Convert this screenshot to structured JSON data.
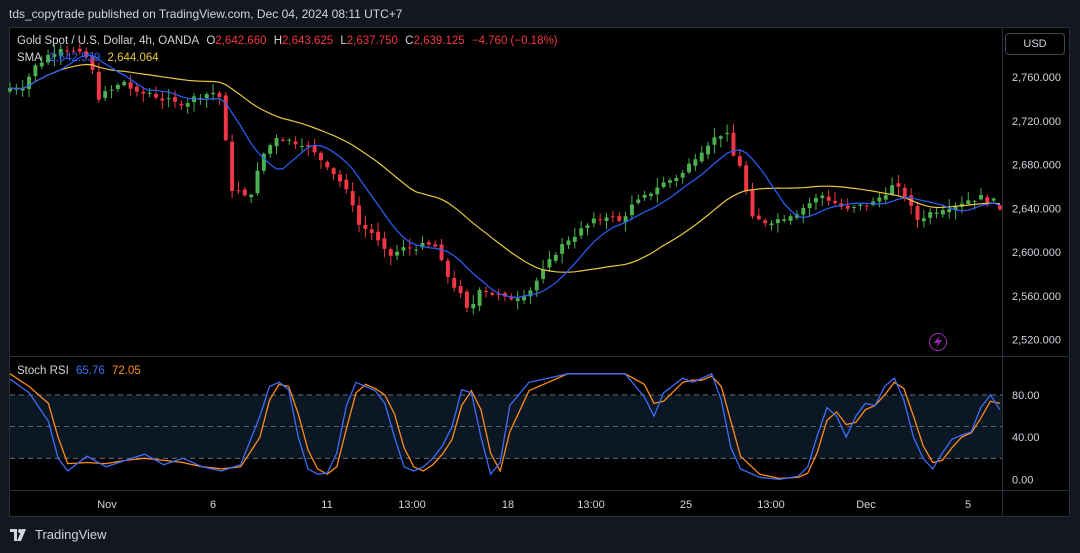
{
  "header": {
    "publisher": "tds_copytrade published on TradingView.com, Dec 04, 2024 08:11 UTC+7"
  },
  "footer": {
    "brand": "TradingView"
  },
  "currency_button": "USD",
  "legend": {
    "symbol": "Gold Spot / U.S. Dollar, 4h, OANDA",
    "o_label": "O",
    "o_value": "2,642.660",
    "h_label": "H",
    "h_value": "2,643.625",
    "l_label": "L",
    "l_value": "2,637.750",
    "c_label": "C",
    "c_value": "2,639.125",
    "change": "−4.760 (−0.18%)",
    "sma_label": "SMA",
    "sma_fast": "2,642.539",
    "sma_slow": "2,644.064",
    "rsi_label": "Stoch RSI",
    "rsi_k": "65.76",
    "rsi_d": "72.05"
  },
  "colors": {
    "up": "#4caf50",
    "down": "#f23645",
    "sma_fast": "#2962ff",
    "sma_slow": "#e8c840",
    "rsi_k": "#3d6dfa",
    "rsi_d": "#ff8c1a",
    "lightning": "#9c27b0"
  },
  "icons": {
    "lightning": "lightning-bolt-icon"
  },
  "chart_data": [
    {
      "type": "candlestick",
      "title": "Gold Spot / U.S. Dollar, 4h, OANDA",
      "ylim": [
        2505,
        2805
      ],
      "y_ticks": [
        2520,
        2560,
        2600,
        2640,
        2680,
        2720,
        2760
      ],
      "y_tick_labels": [
        "2,520.000",
        "2,560.000",
        "2,600.000",
        "2,640.000",
        "2,680.000",
        "2,720.000",
        "2,760.000"
      ],
      "x_tick_labels": [
        "Nov",
        "6",
        "11",
        "13:00",
        "18",
        "13:00",
        "25",
        "13:00",
        "Dec",
        "5"
      ],
      "sma_fast_value": 2642.539,
      "sma_slow_value": 2644.064,
      "close_points": [
        [
          0,
          2750
        ],
        [
          2,
          2752
        ],
        [
          4,
          2770
        ],
        [
          6,
          2780
        ],
        [
          8,
          2788
        ],
        [
          10,
          2783
        ],
        [
          12,
          2778
        ],
        [
          13,
          2765
        ],
        [
          14,
          2742
        ],
        [
          16,
          2748
        ],
        [
          18,
          2756
        ],
        [
          20,
          2744
        ],
        [
          22,
          2746
        ],
        [
          24,
          2740
        ],
        [
          26,
          2736
        ],
        [
          28,
          2738
        ],
        [
          30,
          2744
        ],
        [
          32,
          2746
        ],
        [
          33,
          2742
        ],
        [
          34,
          2700
        ],
        [
          35,
          2658
        ],
        [
          36,
          2655
        ],
        [
          37,
          2650
        ],
        [
          38,
          2655
        ],
        [
          40,
          2690
        ],
        [
          42,
          2706
        ],
        [
          44,
          2702
        ],
        [
          46,
          2700
        ],
        [
          48,
          2690
        ],
        [
          50,
          2680
        ],
        [
          52,
          2665
        ],
        [
          54,
          2645
        ],
        [
          55,
          2625
        ],
        [
          57,
          2618
        ],
        [
          59,
          2600
        ],
        [
          60,
          2597
        ],
        [
          62,
          2603
        ],
        [
          64,
          2605
        ],
        [
          66,
          2606
        ],
        [
          67,
          2605
        ],
        [
          68,
          2590
        ],
        [
          69,
          2578
        ],
        [
          71,
          2560
        ],
        [
          72,
          2547
        ],
        [
          73,
          2553
        ],
        [
          74,
          2568
        ],
        [
          76,
          2562
        ],
        [
          78,
          2557
        ],
        [
          80,
          2560
        ],
        [
          82,
          2566
        ],
        [
          84,
          2582
        ],
        [
          86,
          2600
        ],
        [
          88,
          2612
        ],
        [
          90,
          2620
        ],
        [
          92,
          2628
        ],
        [
          94,
          2634
        ],
        [
          96,
          2628
        ],
        [
          98,
          2642
        ],
        [
          100,
          2650
        ],
        [
          102,
          2660
        ],
        [
          104,
          2666
        ],
        [
          106,
          2672
        ],
        [
          108,
          2688
        ],
        [
          110,
          2700
        ],
        [
          112,
          2708
        ],
        [
          113,
          2706
        ],
        [
          114,
          2688
        ],
        [
          115,
          2680
        ],
        [
          116,
          2655
        ],
        [
          117,
          2630
        ],
        [
          119,
          2628
        ],
        [
          121,
          2630
        ],
        [
          123,
          2635
        ],
        [
          124,
          2637
        ],
        [
          126,
          2645
        ],
        [
          128,
          2652
        ],
        [
          130,
          2645
        ],
        [
          132,
          2638
        ],
        [
          134,
          2642
        ],
        [
          136,
          2645
        ],
        [
          138,
          2655
        ],
        [
          139,
          2660
        ],
        [
          140,
          2657
        ],
        [
          141,
          2652
        ],
        [
          142,
          2640
        ],
        [
          143,
          2630
        ],
        [
          145,
          2636
        ],
        [
          147,
          2641
        ],
        [
          149,
          2644
        ],
        [
          151,
          2648
        ],
        [
          153,
          2650
        ],
        [
          155,
          2646
        ],
        [
          156,
          2639
        ]
      ],
      "ohlc_note": "Last bar O 2,642.660 H 2,643.625 L 2,637.750 C 2,639.125"
    },
    {
      "type": "line",
      "title": "Stoch RSI",
      "ylim": [
        -10,
        115
      ],
      "y_ticks": [
        0,
        40,
        80
      ],
      "y_tick_labels": [
        "0.00",
        "40.00",
        "80.00"
      ],
      "bands": [
        20,
        50,
        80
      ],
      "series": [
        {
          "name": "K",
          "value": 65.76,
          "points": [
            [
              0,
              95
            ],
            [
              2,
              82
            ],
            [
              4,
              55
            ],
            [
              5,
              20
            ],
            [
              6,
              8
            ],
            [
              8,
              22
            ],
            [
              10,
              12
            ],
            [
              12,
              18
            ],
            [
              14,
              24
            ],
            [
              16,
              14
            ],
            [
              18,
              20
            ],
            [
              20,
              12
            ],
            [
              22,
              8
            ],
            [
              24,
              14
            ],
            [
              26,
              60
            ],
            [
              27,
              88
            ],
            [
              28,
              92
            ],
            [
              29,
              85
            ],
            [
              30,
              40
            ],
            [
              31,
              10
            ],
            [
              32,
              5
            ],
            [
              33,
              6
            ],
            [
              34,
              25
            ],
            [
              35,
              70
            ],
            [
              36,
              92
            ],
            [
              37,
              88
            ],
            [
              38,
              84
            ],
            [
              39,
              72
            ],
            [
              40,
              40
            ],
            [
              41,
              12
            ],
            [
              42,
              8
            ],
            [
              43,
              12
            ],
            [
              44,
              20
            ],
            [
              45,
              32
            ],
            [
              46,
              50
            ],
            [
              47,
              85
            ],
            [
              48,
              82
            ],
            [
              49,
              40
            ],
            [
              50,
              5
            ],
            [
              51,
              16
            ],
            [
              52,
              70
            ],
            [
              54,
              92
            ],
            [
              58,
              100
            ],
            [
              62,
              100
            ],
            [
              64,
              100
            ],
            [
              66,
              78
            ],
            [
              67,
              60
            ],
            [
              68,
              82
            ],
            [
              70,
              96
            ],
            [
              71,
              92
            ],
            [
              72,
              96
            ],
            [
              73,
              100
            ],
            [
              74,
              75
            ],
            [
              75,
              30
            ],
            [
              76,
              10
            ],
            [
              78,
              2
            ],
            [
              80,
              0
            ],
            [
              82,
              3
            ],
            [
              83,
              12
            ],
            [
              84,
              42
            ],
            [
              85,
              68
            ],
            [
              86,
              60
            ],
            [
              87,
              40
            ],
            [
              88,
              60
            ],
            [
              89,
              72
            ],
            [
              90,
              70
            ],
            [
              91,
              88
            ],
            [
              92,
              96
            ],
            [
              93,
              75
            ],
            [
              94,
              40
            ],
            [
              95,
              20
            ],
            [
              96,
              10
            ],
            [
              97,
              25
            ],
            [
              98,
              38
            ],
            [
              99,
              42
            ],
            [
              100,
              45
            ],
            [
              101,
              68
            ],
            [
              102,
              80
            ],
            [
              103,
              66
            ]
          ]
        },
        {
          "name": "D",
          "value": 72.05,
          "points": [
            [
              0,
              100
            ],
            [
              2,
              88
            ],
            [
              4,
              72
            ],
            [
              5,
              40
            ],
            [
              6,
              15
            ],
            [
              8,
              16
            ],
            [
              10,
              15
            ],
            [
              12,
              18
            ],
            [
              14,
              20
            ],
            [
              16,
              18
            ],
            [
              18,
              16
            ],
            [
              20,
              12
            ],
            [
              22,
              10
            ],
            [
              24,
              12
            ],
            [
              26,
              40
            ],
            [
              27,
              75
            ],
            [
              28,
              90
            ],
            [
              29,
              88
            ],
            [
              30,
              62
            ],
            [
              31,
              28
            ],
            [
              32,
              10
            ],
            [
              33,
              5
            ],
            [
              34,
              12
            ],
            [
              35,
              48
            ],
            [
              36,
              82
            ],
            [
              37,
              90
            ],
            [
              38,
              86
            ],
            [
              39,
              80
            ],
            [
              40,
              62
            ],
            [
              41,
              30
            ],
            [
              42,
              12
            ],
            [
              43,
              8
            ],
            [
              44,
              14
            ],
            [
              45,
              24
            ],
            [
              46,
              38
            ],
            [
              47,
              70
            ],
            [
              48,
              84
            ],
            [
              49,
              66
            ],
            [
              50,
              25
            ],
            [
              51,
              8
            ],
            [
              52,
              45
            ],
            [
              54,
              84
            ],
            [
              58,
              100
            ],
            [
              62,
              100
            ],
            [
              64,
              100
            ],
            [
              66,
              90
            ],
            [
              67,
              72
            ],
            [
              68,
              74
            ],
            [
              70,
              92
            ],
            [
              71,
              94
            ],
            [
              72,
              94
            ],
            [
              73,
              98
            ],
            [
              74,
              88
            ],
            [
              75,
              55
            ],
            [
              76,
              22
            ],
            [
              78,
              5
            ],
            [
              80,
              1
            ],
            [
              82,
              2
            ],
            [
              83,
              6
            ],
            [
              84,
              26
            ],
            [
              85,
              56
            ],
            [
              86,
              64
            ],
            [
              87,
              52
            ],
            [
              88,
              54
            ],
            [
              89,
              66
            ],
            [
              90,
              70
            ],
            [
              91,
              80
            ],
            [
              92,
              92
            ],
            [
              93,
              86
            ],
            [
              94,
              60
            ],
            [
              95,
              32
            ],
            [
              96,
              16
            ],
            [
              97,
              18
            ],
            [
              98,
              30
            ],
            [
              99,
              40
            ],
            [
              100,
              44
            ],
            [
              101,
              58
            ],
            [
              102,
              74
            ],
            [
              103,
              72
            ]
          ]
        }
      ]
    }
  ]
}
